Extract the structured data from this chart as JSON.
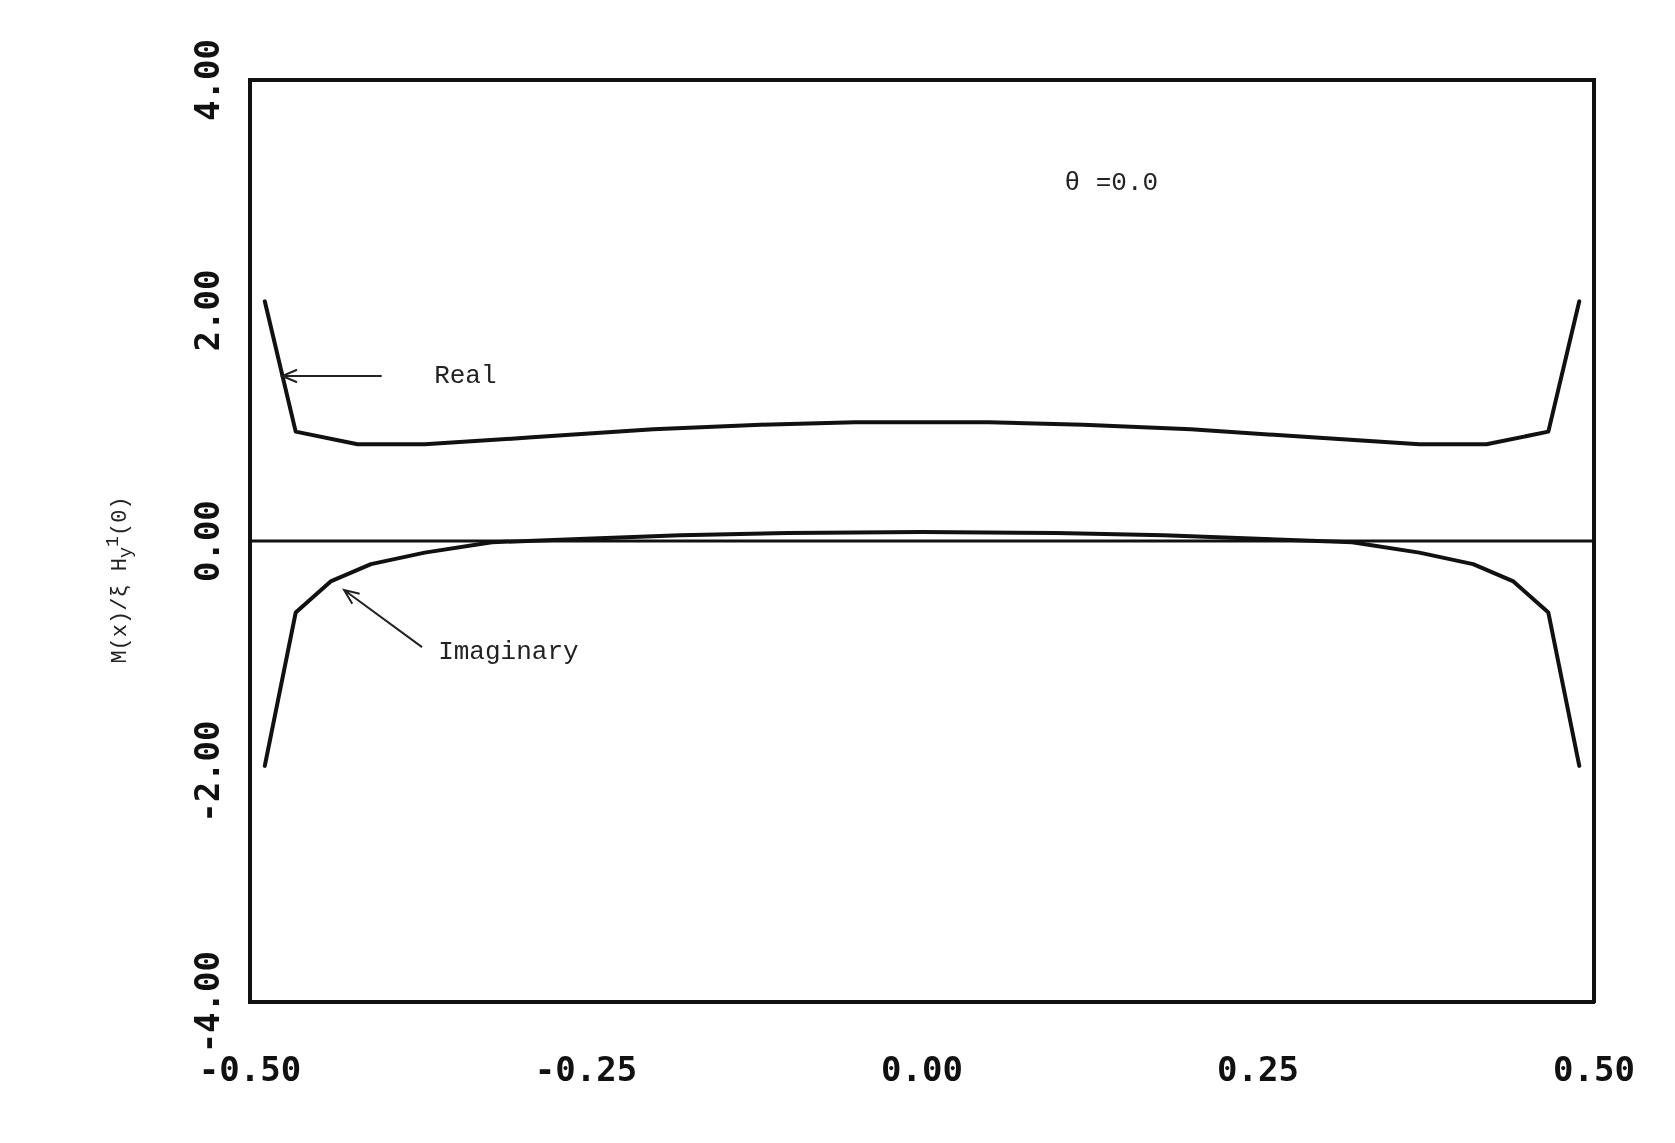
{
  "chart_data": {
    "type": "line",
    "ylabel": "M(x)/ξ H$_{y}$$^{1}$(0)",
    "xlim": [
      -0.5,
      0.5
    ],
    "ylim": [
      -4,
      4
    ],
    "xticks": [
      {
        "value": -0.5,
        "label": "-0.50"
      },
      {
        "value": -0.25,
        "label": "-0.25"
      },
      {
        "value": 0,
        "label": "0.00"
      },
      {
        "value": 0.25,
        "label": "0.25"
      },
      {
        "value": 0.5,
        "label": "0.50"
      }
    ],
    "yticks": [
      {
        "value": -4,
        "label": "-4.00"
      },
      {
        "value": -2,
        "label": "-2.00"
      },
      {
        "value": 0,
        "label": "0.00"
      },
      {
        "value": 2,
        "label": "2.00"
      },
      {
        "value": 4,
        "label": "4.00"
      }
    ],
    "grid": false,
    "legend": false,
    "marker": "none",
    "line_style": "solid",
    "ref_lines": [
      {
        "axis": "y",
        "value": 0,
        "color": "#111111"
      }
    ],
    "series": [
      {
        "color": "#111111",
        "x": [
          -0.489,
          -0.466,
          -0.42,
          -0.37,
          -0.29,
          -0.2,
          -0.12,
          -0.05,
          0,
          0.05,
          0.12,
          0.2,
          0.29,
          0.37,
          0.42,
          0.466,
          0.489
        ],
        "values": [
          2.08,
          0.95,
          0.84,
          0.84,
          0.9,
          0.97,
          1.01,
          1.03,
          1.03,
          1.03,
          1.01,
          0.97,
          0.9,
          0.84,
          0.84,
          0.95,
          2.08
        ]
      },
      {
        "color": "#111111",
        "x": [
          -0.489,
          -0.466,
          -0.44,
          -0.41,
          -0.37,
          -0.32,
          -0.25,
          -0.18,
          -0.1,
          0,
          0.1,
          0.18,
          0.25,
          0.32,
          0.37,
          0.41,
          0.44,
          0.466,
          0.489
        ],
        "values": [
          -1.95,
          -0.62,
          -0.35,
          -0.2,
          -0.1,
          -0.01,
          0.02,
          0.05,
          0.07,
          0.08,
          0.07,
          0.05,
          0.02,
          -0.01,
          -0.1,
          -0.2,
          -0.35,
          -0.62,
          -1.95
        ]
      }
    ],
    "annotations": [
      "θ =0.0",
      "Real",
      "Imaginary"
    ]
  }
}
